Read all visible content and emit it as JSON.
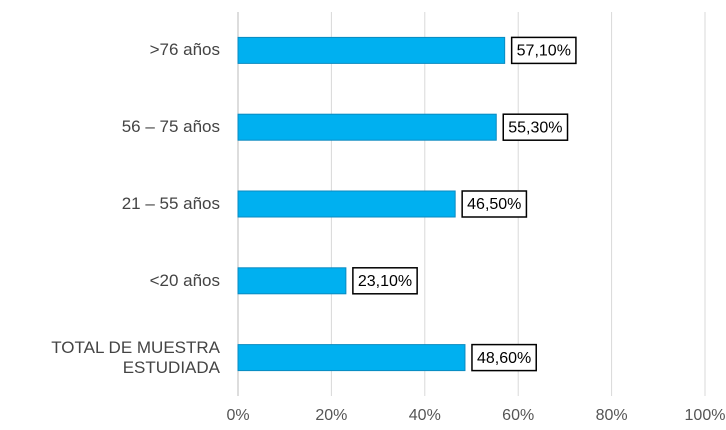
{
  "chart_data": {
    "type": "bar",
    "orientation": "horizontal",
    "categories": [
      ">76 años",
      "56 – 75 años",
      "21 – 55 años",
      "<20 años",
      "TOTAL DE MUESTRA ESTUDIADA"
    ],
    "values": [
      57.1,
      55.3,
      46.5,
      23.1,
      48.6
    ],
    "value_labels": [
      "57,10%",
      "55,30%",
      "46,50%",
      "23,10%",
      "48,60%"
    ],
    "color": "#00b0f0",
    "xlim": [
      0,
      100
    ],
    "xticks": [
      {
        "value": 0,
        "label": "0%"
      },
      {
        "value": 20,
        "label": "20%"
      },
      {
        "value": 40,
        "label": "40%"
      },
      {
        "value": 60,
        "label": "60%"
      },
      {
        "value": 80,
        "label": "80%"
      },
      {
        "value": 100,
        "label": "100%"
      }
    ],
    "grid": true
  }
}
